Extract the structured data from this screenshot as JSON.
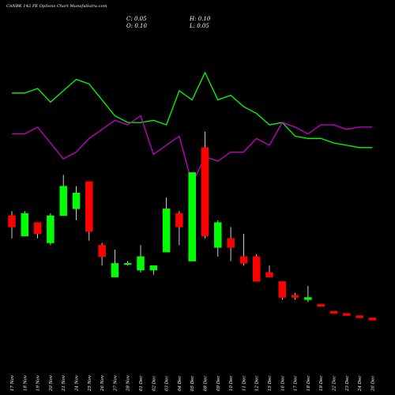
{
  "title": "CANBK 142  PE Options  Chart MunafaSutra.com",
  "ohlc": {
    "close": "C: 0.05",
    "high": "H: 0.10",
    "open": "O: 0.10",
    "low": "L: 0.05"
  },
  "colors": {
    "background": "#000000",
    "up": "#00ff00",
    "down": "#ff0000",
    "line_green": "#00ff00",
    "line_magenta": "#cc00cc",
    "wick": "#ffffff",
    "text": "#ffffff"
  },
  "chart_data": {
    "type": "candlestick",
    "x": [
      "17 Nov",
      "18 Nov",
      "19 Nov",
      "20 Nov",
      "21 Nov",
      "24 Nov",
      "25 Nov",
      "26 Nov",
      "27 Nov",
      "28 Nov",
      "01 Dec",
      "02 Dec",
      "03 Dec",
      "04 Dec",
      "05 Dec",
      "08 Dec",
      "09 Dec",
      "10 Dec",
      "11 Dec",
      "12 Dec",
      "15 Dec",
      "16 Dec",
      "17 Dec",
      "18 Dec",
      "19 Dec",
      "22 Dec",
      "23 Dec",
      "24 Dec",
      "26 Dec"
    ],
    "candles": [
      {
        "o": 7.2,
        "h": 7.4,
        "l": 6.2,
        "c": 6.7
      },
      {
        "o": 6.3,
        "h": 7.4,
        "l": 6.3,
        "c": 7.3
      },
      {
        "o": 6.9,
        "h": 6.9,
        "l": 6.2,
        "c": 6.4
      },
      {
        "o": 6.0,
        "h": 7.3,
        "l": 5.9,
        "c": 7.2
      },
      {
        "o": 7.2,
        "h": 9.0,
        "l": 7.2,
        "c": 8.5
      },
      {
        "o": 7.5,
        "h": 8.5,
        "l": 7.0,
        "c": 8.2
      },
      {
        "o": 8.7,
        "h": 8.7,
        "l": 6.1,
        "c": 6.5
      },
      {
        "o": 5.9,
        "h": 6.0,
        "l": 5.0,
        "c": 5.4
      },
      {
        "o": 4.5,
        "h": 5.7,
        "l": 4.5,
        "c": 5.1
      },
      {
        "o": 5.1,
        "h": 5.2,
        "l": 5.0,
        "c": 5.1
      },
      {
        "o": 4.8,
        "h": 5.9,
        "l": 4.7,
        "c": 5.4
      },
      {
        "o": 4.8,
        "h": 5.0,
        "l": 4.6,
        "c": 5.0
      },
      {
        "o": 5.6,
        "h": 8.0,
        "l": 5.6,
        "c": 7.5
      },
      {
        "o": 7.3,
        "h": 7.4,
        "l": 5.9,
        "c": 6.7
      },
      {
        "o": 5.2,
        "h": 9.1,
        "l": 5.2,
        "c": 9.1
      },
      {
        "o": 10.2,
        "h": 10.9,
        "l": 6.2,
        "c": 6.3
      },
      {
        "o": 5.8,
        "h": 7.0,
        "l": 5.4,
        "c": 6.9
      },
      {
        "o": 6.2,
        "h": 6.7,
        "l": 5.2,
        "c": 5.8
      },
      {
        "o": 5.4,
        "h": 6.4,
        "l": 5.0,
        "c": 5.1
      },
      {
        "o": 5.4,
        "h": 5.5,
        "l": 4.3,
        "c": 4.3
      },
      {
        "o": 4.7,
        "h": 5.0,
        "l": 4.5,
        "c": 4.5
      },
      {
        "o": 4.3,
        "h": 4.3,
        "l": 3.5,
        "c": 3.6
      },
      {
        "o": 3.7,
        "h": 3.8,
        "l": 3.5,
        "c": 3.6
      },
      {
        "o": 3.5,
        "h": 4.1,
        "l": 3.4,
        "c": 3.6
      },
      {
        "o": 3.3,
        "h": 3.3,
        "l": 3.2,
        "c": 3.2
      },
      {
        "o": 3.0,
        "h": 3.0,
        "l": 2.9,
        "c": 2.9
      },
      {
        "o": 2.9,
        "h": 2.9,
        "l": 2.8,
        "c": 2.8
      },
      {
        "o": 2.8,
        "h": 2.8,
        "l": 2.7,
        "c": 2.7
      },
      {
        "o": 2.7,
        "h": 2.7,
        "l": 2.6,
        "c": 2.6
      }
    ],
    "line_series": [
      {
        "color": "#00ff00",
        "values": [
          12.6,
          12.6,
          12.8,
          12.2,
          12.7,
          13.2,
          13.0,
          12.3,
          11.6,
          11.3,
          11.3,
          11.4,
          11.2,
          12.7,
          12.3,
          13.5,
          12.3,
          12.5,
          12.0,
          11.7,
          11.2,
          11.3,
          10.7,
          10.6,
          10.6,
          10.4,
          10.3,
          10.2,
          10.2
        ]
      },
      {
        "color": "#cc00cc",
        "values": [
          10.8,
          10.8,
          11.1,
          10.4,
          9.7,
          10.0,
          10.6,
          11.0,
          11.4,
          11.2,
          11.6,
          9.9,
          10.3,
          10.7,
          8.6,
          9.8,
          9.6,
          10.0,
          10.0,
          10.6,
          10.3,
          11.3,
          11.1,
          10.8,
          11.2,
          11.2,
          11.0,
          11.1,
          11.1
        ]
      }
    ],
    "ylim": [
      0,
      16
    ]
  }
}
